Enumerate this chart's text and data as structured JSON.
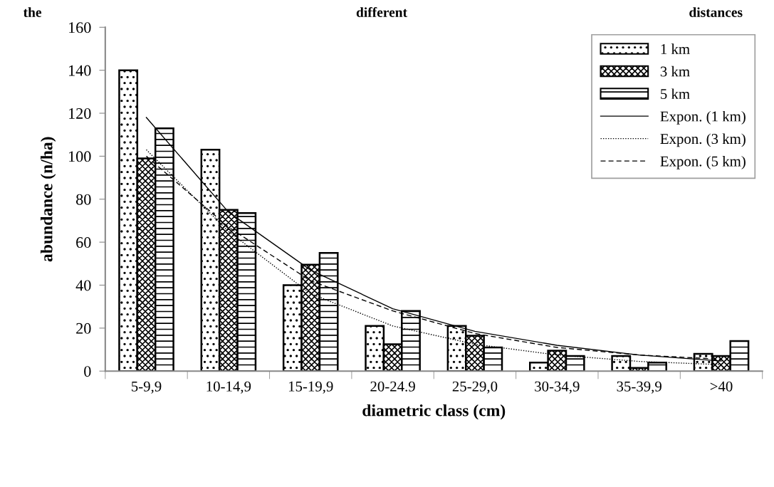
{
  "chart_data": {
    "type": "bar",
    "annotations": [
      "the",
      "different",
      "distances"
    ],
    "xlabel": "diametric class (cm)",
    "ylabel": "abundance (n/ha)",
    "categories": [
      "5-9,9",
      "10-14,9",
      "15-19,9",
      "20-24.9",
      "25-29,0",
      "30-34,9",
      "35-39,9",
      ">40"
    ],
    "ylim": [
      0,
      160
    ],
    "yticks": [
      0,
      20,
      40,
      60,
      80,
      100,
      120,
      140,
      160
    ],
    "grid": false,
    "legend": "top right",
    "series": [
      {
        "name": "1 km",
        "color": "#000000",
        "values": [
          140,
          103,
          40,
          21,
          21,
          4,
          7,
          8
        ]
      },
      {
        "name": "3 km",
        "color": "#000000",
        "values": [
          99,
          75,
          49.5,
          12.5,
          16.5,
          9.5,
          1.5,
          7
        ]
      },
      {
        "name": "5 km",
        "color": "#000000",
        "values": [
          113,
          73.5,
          55,
          28,
          11,
          7,
          4,
          14
        ]
      },
      {
        "name": "Expon. (1 km)",
        "type": "line",
        "line_style": "solid",
        "color": "#000000",
        "values": [
          118,
          74,
          47,
          29,
          18.5,
          12,
          7.5,
          4.7
        ]
      },
      {
        "name": "Expon. (3 km)",
        "type": "line",
        "line_style": "dotted",
        "color": "#000000",
        "values": [
          103,
          65,
          36,
          21,
          12.5,
          7.5,
          4.5,
          3
        ]
      },
      {
        "name": "Expon. (5 km)",
        "type": "line",
        "line_style": "dashed",
        "color": "#000000",
        "values": [
          100,
          67,
          42,
          28,
          17.5,
          11,
          7.5,
          5.5
        ]
      }
    ]
  }
}
